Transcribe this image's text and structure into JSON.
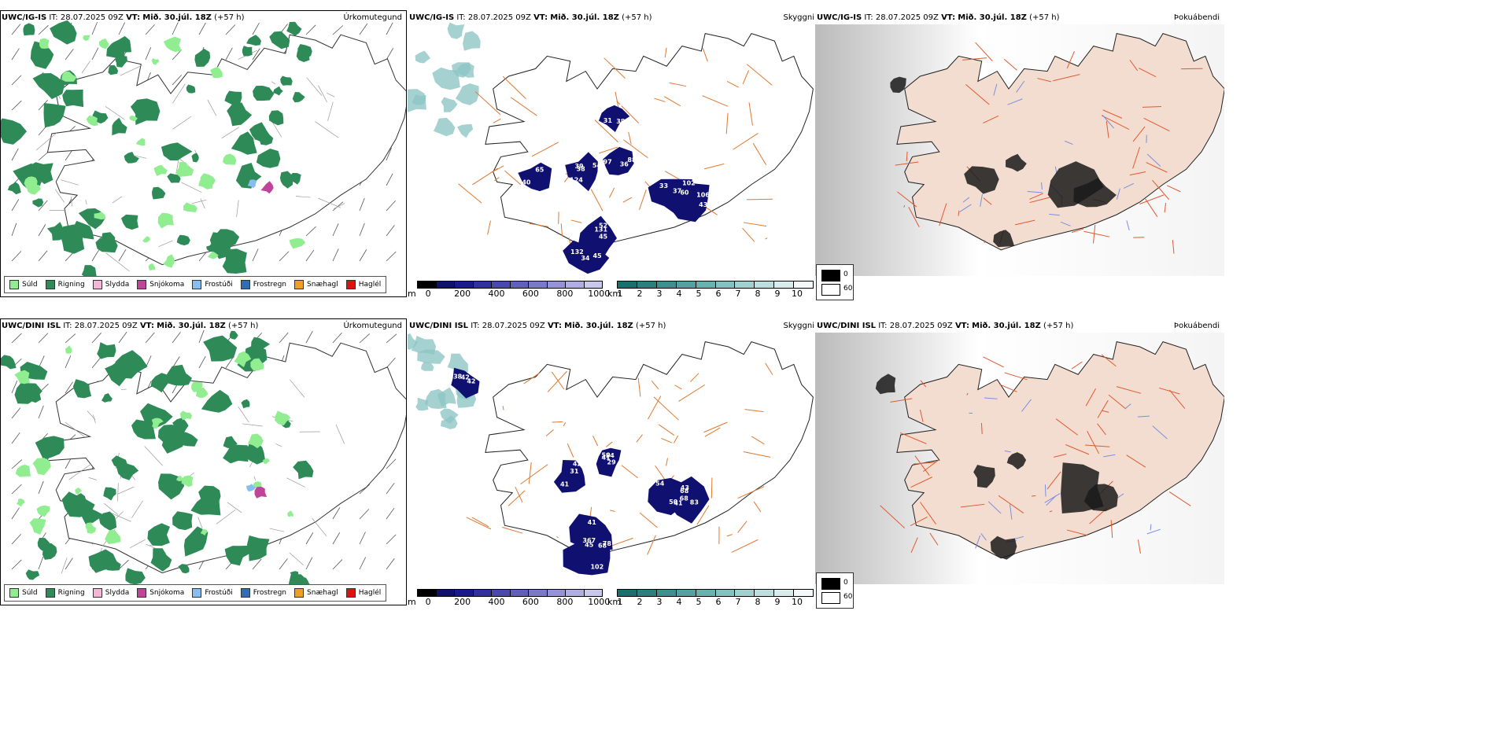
{
  "rows": [
    {
      "source": "UWC/IG-IS",
      "it_label": "IT:",
      "it_value": "28.07.2025 09Z",
      "vt_label": "VT:",
      "vt_value": "Mið. 30.júl. 18Z",
      "lead": "(+57 h)"
    },
    {
      "source": "UWC/DINI ISL",
      "it_label": "IT:",
      "it_value": "28.07.2025 09Z",
      "vt_label": "VT:",
      "vt_value": "Mið. 30.júl. 18Z",
      "lead": "(+57 h)"
    }
  ],
  "panel_titles": {
    "precip": "Úrkomutegund",
    "visibility": "Skyggni",
    "fog": "Þokuábendi"
  },
  "precip_legend": [
    {
      "label": "Súld",
      "color": "#90ee90"
    },
    {
      "label": "Rigning",
      "color": "#2e8b57"
    },
    {
      "label": "Slydda",
      "color": "#f4b6d6"
    },
    {
      "label": "Snjókoma",
      "color": "#c0449a"
    },
    {
      "label": "Frostúði",
      "color": "#87bdf0"
    },
    {
      "label": "Frostregn",
      "color": "#2f6db5"
    },
    {
      "label": "Snæhagl",
      "color": "#f0a020"
    },
    {
      "label": "Haglél",
      "color": "#e01010"
    }
  ],
  "height_scale": {
    "unit": "m",
    "ticks": [
      "0",
      "200",
      "400",
      "600",
      "800",
      "1000"
    ],
    "colors": [
      "#000000",
      "#101070",
      "#1a1a90",
      "#3030a0",
      "#4848b0",
      "#6060bc",
      "#7a7ac8",
      "#9494d4",
      "#aeaee0",
      "#c8c8ec"
    ]
  },
  "km_scale": {
    "unit": "km",
    "ticks": [
      "1",
      "2",
      "3",
      "4",
      "5",
      "6",
      "7",
      "8",
      "9",
      "10"
    ],
    "colors": [
      "#1b6e6e",
      "#2c7f7f",
      "#3e9090",
      "#55a0a0",
      "#6cb0b0",
      "#86c0c0",
      "#a0d0d0",
      "#bcdede",
      "#d8ecec",
      "#f4fafa"
    ]
  },
  "fog_scale": {
    "high": "0",
    "low": "60",
    "high_color": "#000000",
    "low_color": "#ffffff"
  },
  "cloud_labels": [
    [
      "124",
      "88",
      "102",
      "106",
      "131",
      "132",
      "65",
      "31",
      "38",
      "36",
      "37",
      "43",
      "52",
      "45",
      "38",
      "38",
      "39",
      "97",
      "33",
      "60",
      "45",
      "34",
      "40",
      "26",
      "54"
    ],
    [
      "56",
      "50",
      "43",
      "68",
      "41",
      "102",
      "38",
      "42",
      "54",
      "54",
      "41",
      "78",
      "45",
      "42",
      "41",
      "41",
      "68",
      "83",
      "367",
      "68",
      "42",
      "31",
      "29",
      "50"
    ]
  ],
  "colors": {
    "rain": "#2e8b57",
    "drizzle": "#90ee90",
    "road": "#e07830",
    "land_fog": "#f3ddd0",
    "river": "#7a8fe0",
    "cloud_dark": "#101070"
  }
}
